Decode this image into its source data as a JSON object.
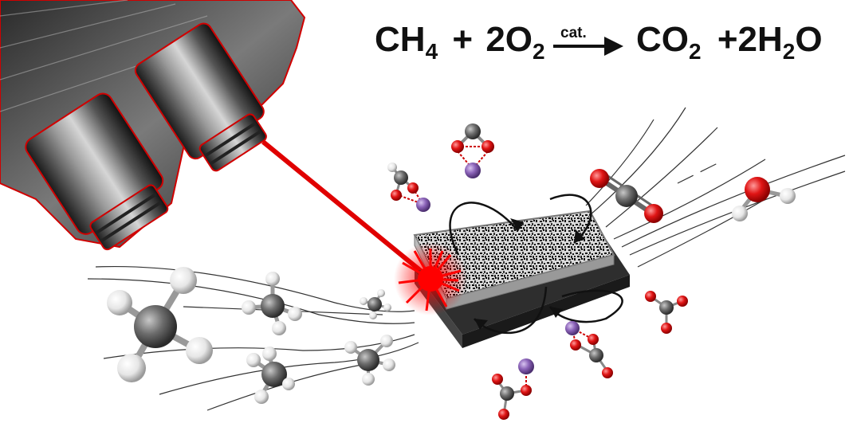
{
  "equation": {
    "reactant_1": "CH",
    "reactant_1_sub": "4",
    "plus_1": "+",
    "reactant_2": "2O",
    "reactant_2_sub": "2",
    "catalyst": "cat.",
    "product_1": "CO",
    "product_1_sub": "2",
    "plus_2": "+2H",
    "product_2_sub": "2",
    "product_2_end": "O"
  },
  "colors": {
    "laser": "#e00000",
    "oxygen": "#e31b1b",
    "carbon": "#6e6e6e",
    "hydrogen": "#eeeeee",
    "metal": "#8a63b3",
    "catalyst_plate": "#333333"
  },
  "icons": [
    "microscope-objective-icon",
    "laser-beam-icon",
    "catalyst-plate-icon",
    "molecule-icon"
  ]
}
